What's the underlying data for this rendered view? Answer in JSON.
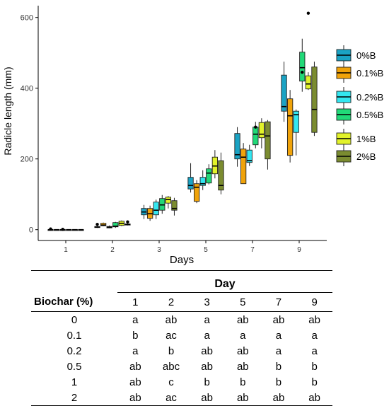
{
  "chart_data": {
    "type": "box",
    "xlabel": "Days",
    "ylabel": "Radicle length (mm)",
    "categories": [
      "1",
      "2",
      "3",
      "5",
      "7",
      "9"
    ],
    "yticks": [
      0,
      200,
      400,
      600
    ],
    "ylim": [
      -20,
      630
    ],
    "legend_position": "right",
    "series": [
      {
        "name": "0%B",
        "color": "#1aa3c4",
        "boxes": [
          {
            "min": 0,
            "q1": 0,
            "median": 0,
            "q3": 0,
            "max": 0,
            "outliers": [
              2
            ]
          },
          {
            "min": 5,
            "q1": 6,
            "median": 7,
            "q3": 9,
            "max": 11,
            "outliers": [
              15
            ]
          },
          {
            "min": 30,
            "q1": 42,
            "median": 50,
            "q3": 60,
            "max": 70,
            "outliers": []
          },
          {
            "min": 105,
            "q1": 115,
            "median": 125,
            "q3": 148,
            "max": 188,
            "outliers": []
          },
          {
            "min": 178,
            "q1": 200,
            "median": 212,
            "q3": 272,
            "max": 290,
            "outliers": []
          },
          {
            "min": 305,
            "q1": 335,
            "median": 348,
            "q3": 437,
            "max": 475,
            "outliers": []
          }
        ]
      },
      {
        "name": "0.1%B",
        "color": "#f0a30a",
        "boxes": [
          {
            "min": 0,
            "q1": 0,
            "median": 0,
            "q3": 0,
            "max": 0,
            "outliers": []
          },
          {
            "min": 10,
            "q1": 11,
            "median": 13,
            "q3": 18,
            "max": 20,
            "outliers": []
          },
          {
            "min": 25,
            "q1": 32,
            "median": 45,
            "q3": 60,
            "max": 68,
            "outliers": []
          },
          {
            "min": 75,
            "q1": 80,
            "median": 120,
            "q3": 130,
            "max": 140,
            "outliers": []
          },
          {
            "min": 130,
            "q1": 130,
            "median": 205,
            "q3": 228,
            "max": 245,
            "outliers": []
          },
          {
            "min": 190,
            "q1": 210,
            "median": 322,
            "q3": 370,
            "max": 395,
            "outliers": []
          }
        ]
      },
      {
        "name": "0.2%B",
        "color": "#33e6f0",
        "boxes": [
          {
            "min": 0,
            "q1": 0,
            "median": 0,
            "q3": 0,
            "max": 0,
            "outliers": [
              1
            ]
          },
          {
            "min": 4,
            "q1": 5,
            "median": 7,
            "q3": 9,
            "max": 12,
            "outliers": []
          },
          {
            "min": 30,
            "q1": 42,
            "median": 55,
            "q3": 78,
            "max": 85,
            "outliers": []
          },
          {
            "min": 112,
            "q1": 125,
            "median": 130,
            "q3": 148,
            "max": 168,
            "outliers": []
          },
          {
            "min": 180,
            "q1": 190,
            "median": 195,
            "q3": 225,
            "max": 240,
            "outliers": []
          },
          {
            "min": 210,
            "q1": 275,
            "median": 325,
            "q3": 335,
            "max": 340,
            "outliers": []
          }
        ]
      },
      {
        "name": "0.5%B",
        "color": "#21d978",
        "boxes": [
          {
            "min": 0,
            "q1": 0,
            "median": 0,
            "q3": 0,
            "max": 0,
            "outliers": []
          },
          {
            "min": 5,
            "q1": 8,
            "median": 10,
            "q3": 20,
            "max": 22,
            "outliers": []
          },
          {
            "min": 45,
            "q1": 55,
            "median": 70,
            "q3": 88,
            "max": 98,
            "outliers": []
          },
          {
            "min": 128,
            "q1": 132,
            "median": 160,
            "q3": 172,
            "max": 185,
            "outliers": []
          },
          {
            "min": 230,
            "q1": 240,
            "median": 270,
            "q3": 290,
            "max": 305,
            "outliers": [
              290
            ]
          },
          {
            "min": 390,
            "q1": 420,
            "median": 458,
            "q3": 502,
            "max": 540,
            "outliers": [
              445
            ]
          }
        ]
      },
      {
        "name": "1%B",
        "color": "#e2f22a",
        "boxes": [
          {
            "min": 0,
            "q1": 0,
            "median": 0,
            "q3": 0,
            "max": 0,
            "outliers": []
          },
          {
            "min": 10,
            "q1": 12,
            "median": 18,
            "q3": 24,
            "max": 26,
            "outliers": []
          },
          {
            "min": 60,
            "q1": 75,
            "median": 85,
            "q3": 92,
            "max": 95,
            "outliers": []
          },
          {
            "min": 145,
            "q1": 158,
            "median": 180,
            "q3": 205,
            "max": 225,
            "outliers": []
          },
          {
            "min": 230,
            "q1": 260,
            "median": 270,
            "q3": 303,
            "max": 315,
            "outliers": []
          },
          {
            "min": 395,
            "q1": 398,
            "median": 412,
            "q3": 435,
            "max": 445,
            "outliers": [
              612
            ]
          }
        ]
      },
      {
        "name": "2%B",
        "color": "#7b8c30",
        "boxes": [
          {
            "min": 0,
            "q1": 0,
            "median": 0,
            "q3": 0,
            "max": 0,
            "outliers": []
          },
          {
            "min": 12,
            "q1": 13,
            "median": 15,
            "q3": 16,
            "max": 18,
            "outliers": [
              22
            ]
          },
          {
            "min": 40,
            "q1": 55,
            "median": 60,
            "q3": 82,
            "max": 90,
            "outliers": []
          },
          {
            "min": 100,
            "q1": 112,
            "median": 125,
            "q3": 195,
            "max": 218,
            "outliers": []
          },
          {
            "min": 170,
            "q1": 200,
            "median": 265,
            "q3": 305,
            "max": 310,
            "outliers": []
          },
          {
            "min": 265,
            "q1": 275,
            "median": 340,
            "q3": 460,
            "max": 475,
            "outliers": []
          }
        ]
      }
    ]
  },
  "table": {
    "group_header": "Day",
    "row_header": "Biochar (%)",
    "columns": [
      "1",
      "2",
      "3",
      "5",
      "7",
      "9"
    ],
    "rows": [
      {
        "label": "0",
        "cells": [
          "a",
          "ab",
          "a",
          "ab",
          "ab",
          "ab"
        ]
      },
      {
        "label": "0.1",
        "cells": [
          "b",
          "ac",
          "a",
          "a",
          "a",
          "a"
        ]
      },
      {
        "label": "0.2",
        "cells": [
          "a",
          "b",
          "ab",
          "ab",
          "a",
          "a"
        ]
      },
      {
        "label": "0.5",
        "cells": [
          "ab",
          "abc",
          "ab",
          "ab",
          "b",
          "b"
        ]
      },
      {
        "label": "1",
        "cells": [
          "ab",
          "c",
          "b",
          "b",
          "b",
          "b"
        ]
      },
      {
        "label": "2",
        "cells": [
          "ab",
          "ac",
          "ab",
          "ab",
          "ab",
          "ab"
        ]
      }
    ]
  }
}
